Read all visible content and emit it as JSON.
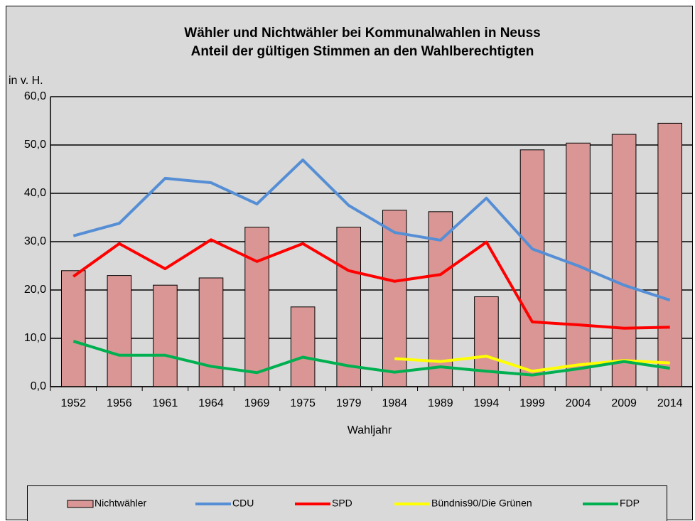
{
  "chart_data": {
    "type": "bar",
    "title": "Wähler und Nichtwähler bei Kommunalwahlen in Neuss",
    "subtitle": "Anteil der gültigen Stimmen an den Wahlberechtigten",
    "y_label": "in v. H.",
    "x_label": "Wahljahr",
    "categories": [
      "1952",
      "1956",
      "1961",
      "1964",
      "1969",
      "1975",
      "1979",
      "1984",
      "1989",
      "1994",
      "1999",
      "2004",
      "2009",
      "2014"
    ],
    "series": [
      {
        "name": "Nichtwähler",
        "type": "bar",
        "color": "#d99694",
        "values": [
          24,
          23,
          21,
          22.5,
          33,
          16.5,
          33,
          36.5,
          36.2,
          18.6,
          49,
          50.4,
          52.2,
          54.5
        ]
      },
      {
        "name": "CDU",
        "type": "line",
        "color": "#558ed5",
        "values": [
          31.2,
          33.8,
          43.1,
          42.2,
          37.8,
          46.9,
          37.5,
          31.9,
          30.3,
          39.0,
          28.5,
          25,
          21,
          17.9
        ]
      },
      {
        "name": "SPD",
        "type": "line",
        "color": "#ff0000",
        "values": [
          22.8,
          29.6,
          24.4,
          30.4,
          25.9,
          29.6,
          24,
          21.8,
          23.2,
          29.9,
          13.4,
          12.8,
          12.1,
          12.3
        ]
      },
      {
        "name": "Bündnis90/Die Grünen",
        "type": "line",
        "color": "#ffff00",
        "values": [
          null,
          null,
          null,
          null,
          null,
          null,
          null,
          5.8,
          5.2,
          6.3,
          3.2,
          4.5,
          5.4,
          4.9
        ]
      },
      {
        "name": "FDP",
        "type": "line",
        "color": "#00b050",
        "values": [
          9.4,
          6.5,
          6.5,
          4.2,
          2.9,
          6.1,
          4.3,
          3.0,
          4.1,
          3.2,
          2.4,
          3.7,
          5.2,
          3.8
        ]
      }
    ],
    "ylim": [
      0,
      60
    ],
    "yticks": [
      {
        "value": 0,
        "label": "0,0"
      },
      {
        "value": 10,
        "label": "10,0"
      },
      {
        "value": 20,
        "label": "20,0"
      },
      {
        "value": 30,
        "label": "30,0"
      },
      {
        "value": 40,
        "label": "40,0"
      },
      {
        "value": 50,
        "label": "50,0"
      },
      {
        "value": 60,
        "label": "60,0"
      }
    ],
    "grid": true,
    "legend": "bottom"
  }
}
